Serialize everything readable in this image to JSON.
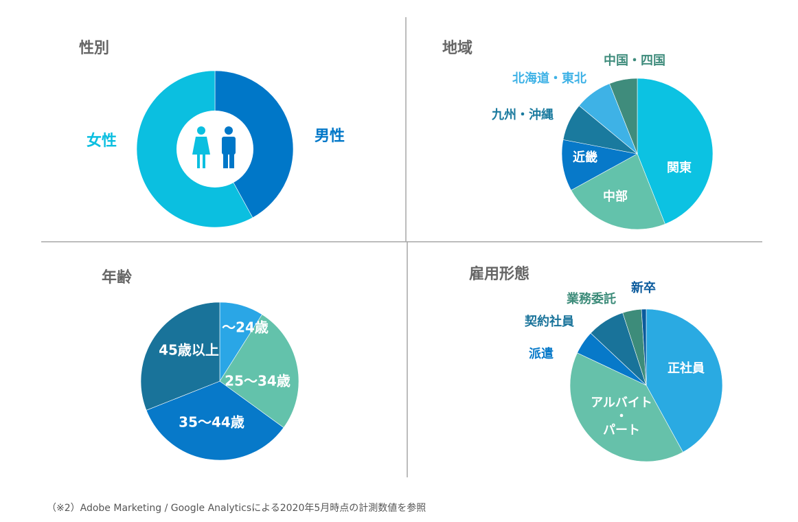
{
  "colors": {
    "divider": "#a6a6a6",
    "title": "#666666",
    "male": "#0077c8",
    "female": "#0bbfe0",
    "kanto": "#0cc2e2",
    "chubu": "#63c2ab",
    "kinki": "#0779c9",
    "kyushu": "#1a7a9e",
    "hokkaido": "#3eb2e6",
    "chugoku": "#3f8c7c",
    "age1": "#2aa6e6",
    "age2": "#63c2ab",
    "age3": "#0779c9",
    "age4": "#19739a",
    "seishain": "#2aaae2",
    "part": "#66c1aa",
    "haken": "#0779c9",
    "keiyaku": "#19739a",
    "gyomu": "#3d8c7a",
    "shinsotsu": "#0a5a9c"
  },
  "icons": [
    "female-person-icon",
    "male-person-icon"
  ],
  "footnote": "（※2）Adobe Marketing / Google Analyticsによる2020年5月時点の計測数値を参照",
  "chart_data": [
    {
      "type": "pie",
      "title": "性別",
      "donut": true,
      "slices": [
        {
          "label": "男性",
          "value": 42,
          "color": "#0077c8"
        },
        {
          "label": "女性",
          "value": 58,
          "color": "#0bbfe0"
        }
      ]
    },
    {
      "type": "pie",
      "title": "地域",
      "slices": [
        {
          "label": "関東",
          "value": 44,
          "color": "#0cc2e2"
        },
        {
          "label": "中部",
          "value": 23,
          "color": "#63c2ab"
        },
        {
          "label": "近畿",
          "value": 11,
          "color": "#0779c9"
        },
        {
          "label": "九州・沖縄",
          "value": 8,
          "color": "#1a7a9e"
        },
        {
          "label": "北海道・東北",
          "value": 8,
          "color": "#3eb2e6"
        },
        {
          "label": "中国・四国",
          "value": 6,
          "color": "#3f8c7c"
        }
      ]
    },
    {
      "type": "pie",
      "title": "年齢",
      "slices": [
        {
          "label": "～24歳",
          "value": 9,
          "color": "#2aa6e6"
        },
        {
          "label": "25～34歳",
          "value": 26,
          "color": "#63c2ab"
        },
        {
          "label": "35～44歳",
          "value": 34,
          "color": "#0779c9"
        },
        {
          "label": "45歳以上",
          "value": 31,
          "color": "#19739a"
        }
      ]
    },
    {
      "type": "pie",
      "title": "雇用形態",
      "slices": [
        {
          "label": "正社員",
          "value": 42,
          "color": "#2aaae2"
        },
        {
          "label": "アルバイト・パート",
          "value": 40,
          "color": "#66c1aa"
        },
        {
          "label": "派遣",
          "value": 5,
          "color": "#0779c9"
        },
        {
          "label": "契約社員",
          "value": 8,
          "color": "#19739a"
        },
        {
          "label": "業務委託",
          "value": 4,
          "color": "#3d8c7a"
        },
        {
          "label": "新卒",
          "value": 1,
          "color": "#0a5a9c"
        }
      ]
    }
  ]
}
